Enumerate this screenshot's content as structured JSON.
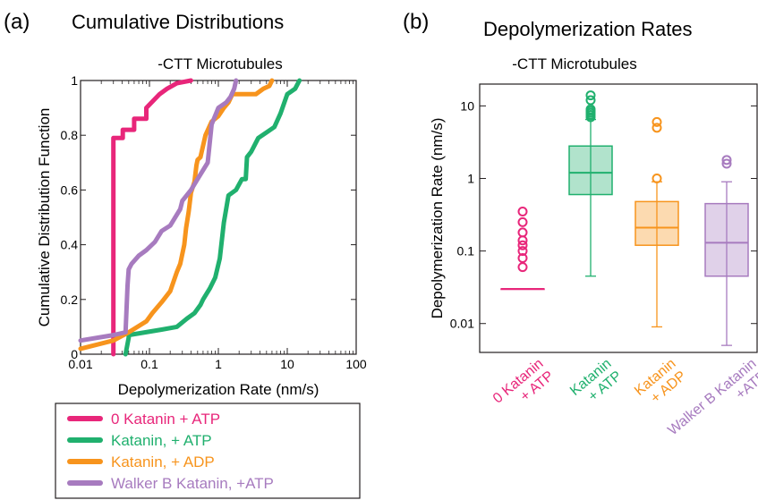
{
  "chart_data": [
    {
      "panel": "(a)",
      "type": "line",
      "title": "Cumulative Distributions",
      "subtitle": "-CTT Microtubules",
      "xlabel": "Depolymerization Rate (nm/s)",
      "ylabel": "Cumulative Distribution Function",
      "xscale": "log",
      "xlim": [
        0.01,
        100
      ],
      "ylim": [
        0,
        1
      ],
      "xticks": [
        "0.01",
        "0.1",
        "1",
        "10",
        "100"
      ],
      "yticks": [
        "0",
        "0.2",
        "0.4",
        "0.6",
        "0.8",
        "1"
      ],
      "legend_position": "bottom",
      "series": [
        {
          "name": "0 Katanin + ATP",
          "color": "#e8267a",
          "x": [
            0.03,
            0.03,
            0.03,
            0.041,
            0.041,
            0.06,
            0.06,
            0.09,
            0.09,
            0.14,
            0.18,
            0.25,
            0.4
          ],
          "y": [
            0.0,
            0.5,
            0.79,
            0.79,
            0.82,
            0.82,
            0.86,
            0.86,
            0.9,
            0.95,
            0.97,
            0.99,
            1.0
          ]
        },
        {
          "name": "Katanin, + ATP",
          "color": "#20b06e",
          "x": [
            0.045,
            0.05,
            0.05,
            0.15,
            0.25,
            0.35,
            0.45,
            0.55,
            0.6,
            0.75,
            0.9,
            1.05,
            1.2,
            1.4,
            1.8,
            2.2,
            2.5,
            2.6,
            3.0,
            3.8,
            5.0,
            6.5,
            8.0,
            10.0,
            13.0,
            15.0
          ],
          "y": [
            0.0,
            0.06,
            0.07,
            0.09,
            0.1,
            0.13,
            0.15,
            0.18,
            0.2,
            0.24,
            0.28,
            0.35,
            0.48,
            0.58,
            0.6,
            0.64,
            0.64,
            0.72,
            0.74,
            0.79,
            0.81,
            0.83,
            0.88,
            0.95,
            0.97,
            1.0
          ]
        },
        {
          "name": "Katanin, + ADP",
          "color": "#f7941d",
          "x": [
            0.01,
            0.03,
            0.05,
            0.09,
            0.11,
            0.15,
            0.2,
            0.25,
            0.28,
            0.32,
            0.34,
            0.37,
            0.4,
            0.45,
            0.48,
            0.5,
            0.55,
            0.65,
            0.8,
            1.0,
            1.2,
            1.4,
            1.6,
            3.5,
            4.5,
            5.5,
            6.0
          ],
          "y": [
            0.02,
            0.05,
            0.08,
            0.12,
            0.15,
            0.19,
            0.23,
            0.3,
            0.33,
            0.4,
            0.46,
            0.52,
            0.59,
            0.63,
            0.69,
            0.71,
            0.72,
            0.8,
            0.85,
            0.87,
            0.9,
            0.92,
            0.95,
            0.95,
            0.97,
            0.98,
            1.0
          ]
        },
        {
          "name": "Walker B Katanin, +ATP",
          "color": "#a77bbf",
          "x": [
            0.01,
            0.03,
            0.045,
            0.048,
            0.05,
            0.055,
            0.07,
            0.09,
            0.12,
            0.15,
            0.2,
            0.28,
            0.3,
            0.4,
            0.5,
            0.7,
            0.8,
            1.0,
            1.3,
            1.5,
            1.7,
            1.8
          ],
          "y": [
            0.05,
            0.07,
            0.08,
            0.25,
            0.31,
            0.33,
            0.36,
            0.38,
            0.41,
            0.45,
            0.47,
            0.53,
            0.56,
            0.6,
            0.64,
            0.7,
            0.84,
            0.9,
            0.92,
            0.94,
            0.97,
            1.0
          ]
        }
      ]
    },
    {
      "panel": "(b)",
      "type": "box",
      "title": "Depolymerization Rates",
      "subtitle": "-CTT Microtubules",
      "ylabel": "Depolymerization Rate (nm/s)",
      "yscale": "log",
      "ylim": [
        0.004,
        20
      ],
      "yticks": [
        "0.01",
        "0.1",
        "1",
        "10"
      ],
      "categories": [
        "0 Katanin\n+ ATP",
        "Katanin\n+ ATP",
        "Katanin\n+ ADP",
        "Walker B Katanin\n+ATP"
      ],
      "boxes": [
        {
          "color": "#e8267a",
          "whisker_low": 0.03,
          "q1": 0.03,
          "median": 0.03,
          "q3": 0.03,
          "whisker_high": 0.03,
          "outliers": [
            0.06,
            0.08,
            0.1,
            0.12,
            0.14,
            0.18,
            0.25,
            0.35
          ]
        },
        {
          "color": "#20b06e",
          "whisker_low": 0.045,
          "q1": 0.6,
          "median": 1.2,
          "q3": 2.8,
          "whisker_high": 6.5,
          "outliers": [
            7.0,
            7.5,
            8.0,
            8.5,
            9.0,
            12.0,
            14.0
          ]
        },
        {
          "color": "#f7941d",
          "whisker_low": 0.009,
          "q1": 0.12,
          "median": 0.21,
          "q3": 0.48,
          "whisker_high": 0.9,
          "outliers": [
            1.0,
            5.0,
            6.0
          ]
        },
        {
          "color": "#a77bbf",
          "whisker_low": 0.005,
          "q1": 0.045,
          "median": 0.13,
          "q3": 0.45,
          "whisker_high": 0.9,
          "outliers": [
            1.6,
            1.8
          ]
        }
      ]
    }
  ],
  "labels": {
    "a_letter": "(a)",
    "b_letter": "(b)"
  }
}
